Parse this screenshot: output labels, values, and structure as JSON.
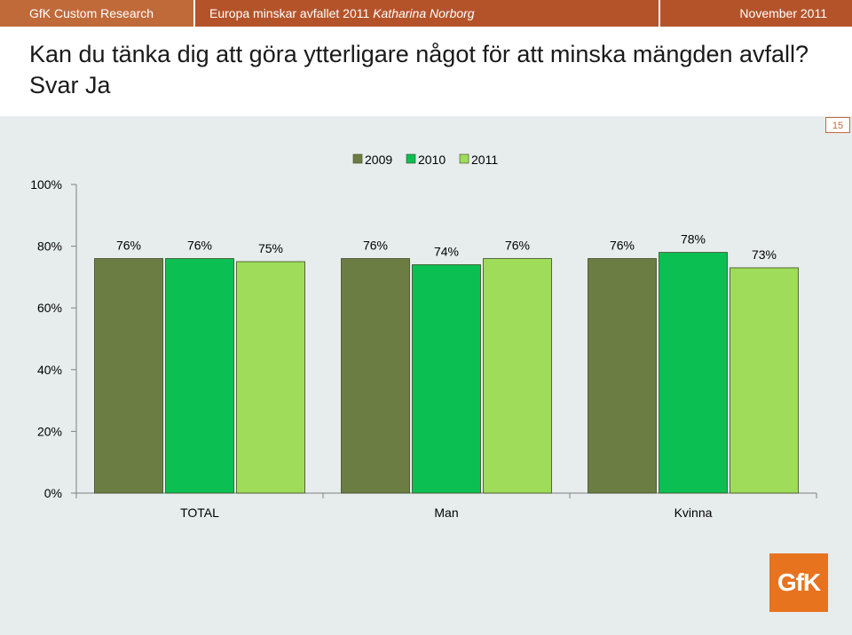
{
  "header": {
    "left": "GfK Custom Research",
    "middle_regular": "Europa minskar avfallet 2011",
    "middle_italic": "Katharina Norborg",
    "right": "November 2011"
  },
  "title": "Kan du tänka dig att göra ytterligare något för att minska mängden avfall?  Svar Ja",
  "page_number": "15",
  "logo_text": "GfK",
  "colors": {
    "series_2009": "#6b7d42",
    "series_2010": "#0bbf52",
    "series_2011": "#9fdc5a",
    "header_bg": "#b4532a",
    "content_bg": "#e7ecec",
    "logo_bg": "#e8731f"
  },
  "chart_data": {
    "type": "bar",
    "categories": [
      "TOTAL",
      "Man",
      "Kvinna"
    ],
    "series": [
      {
        "name": "2009",
        "values": [
          76,
          76,
          76
        ],
        "labels": [
          "76%",
          "76%",
          "76%"
        ]
      },
      {
        "name": "2010",
        "values": [
          76,
          74,
          78
        ],
        "labels": [
          "76%",
          "74%",
          "78%"
        ]
      },
      {
        "name": "2011",
        "values": [
          75,
          76,
          73
        ],
        "labels": [
          "75%",
          "76%",
          "73%"
        ]
      }
    ],
    "ylim": [
      0,
      100
    ],
    "yticks": [
      "0%",
      "20%",
      "40%",
      "60%",
      "80%",
      "100%"
    ],
    "legend_position": "top",
    "grid": false
  }
}
